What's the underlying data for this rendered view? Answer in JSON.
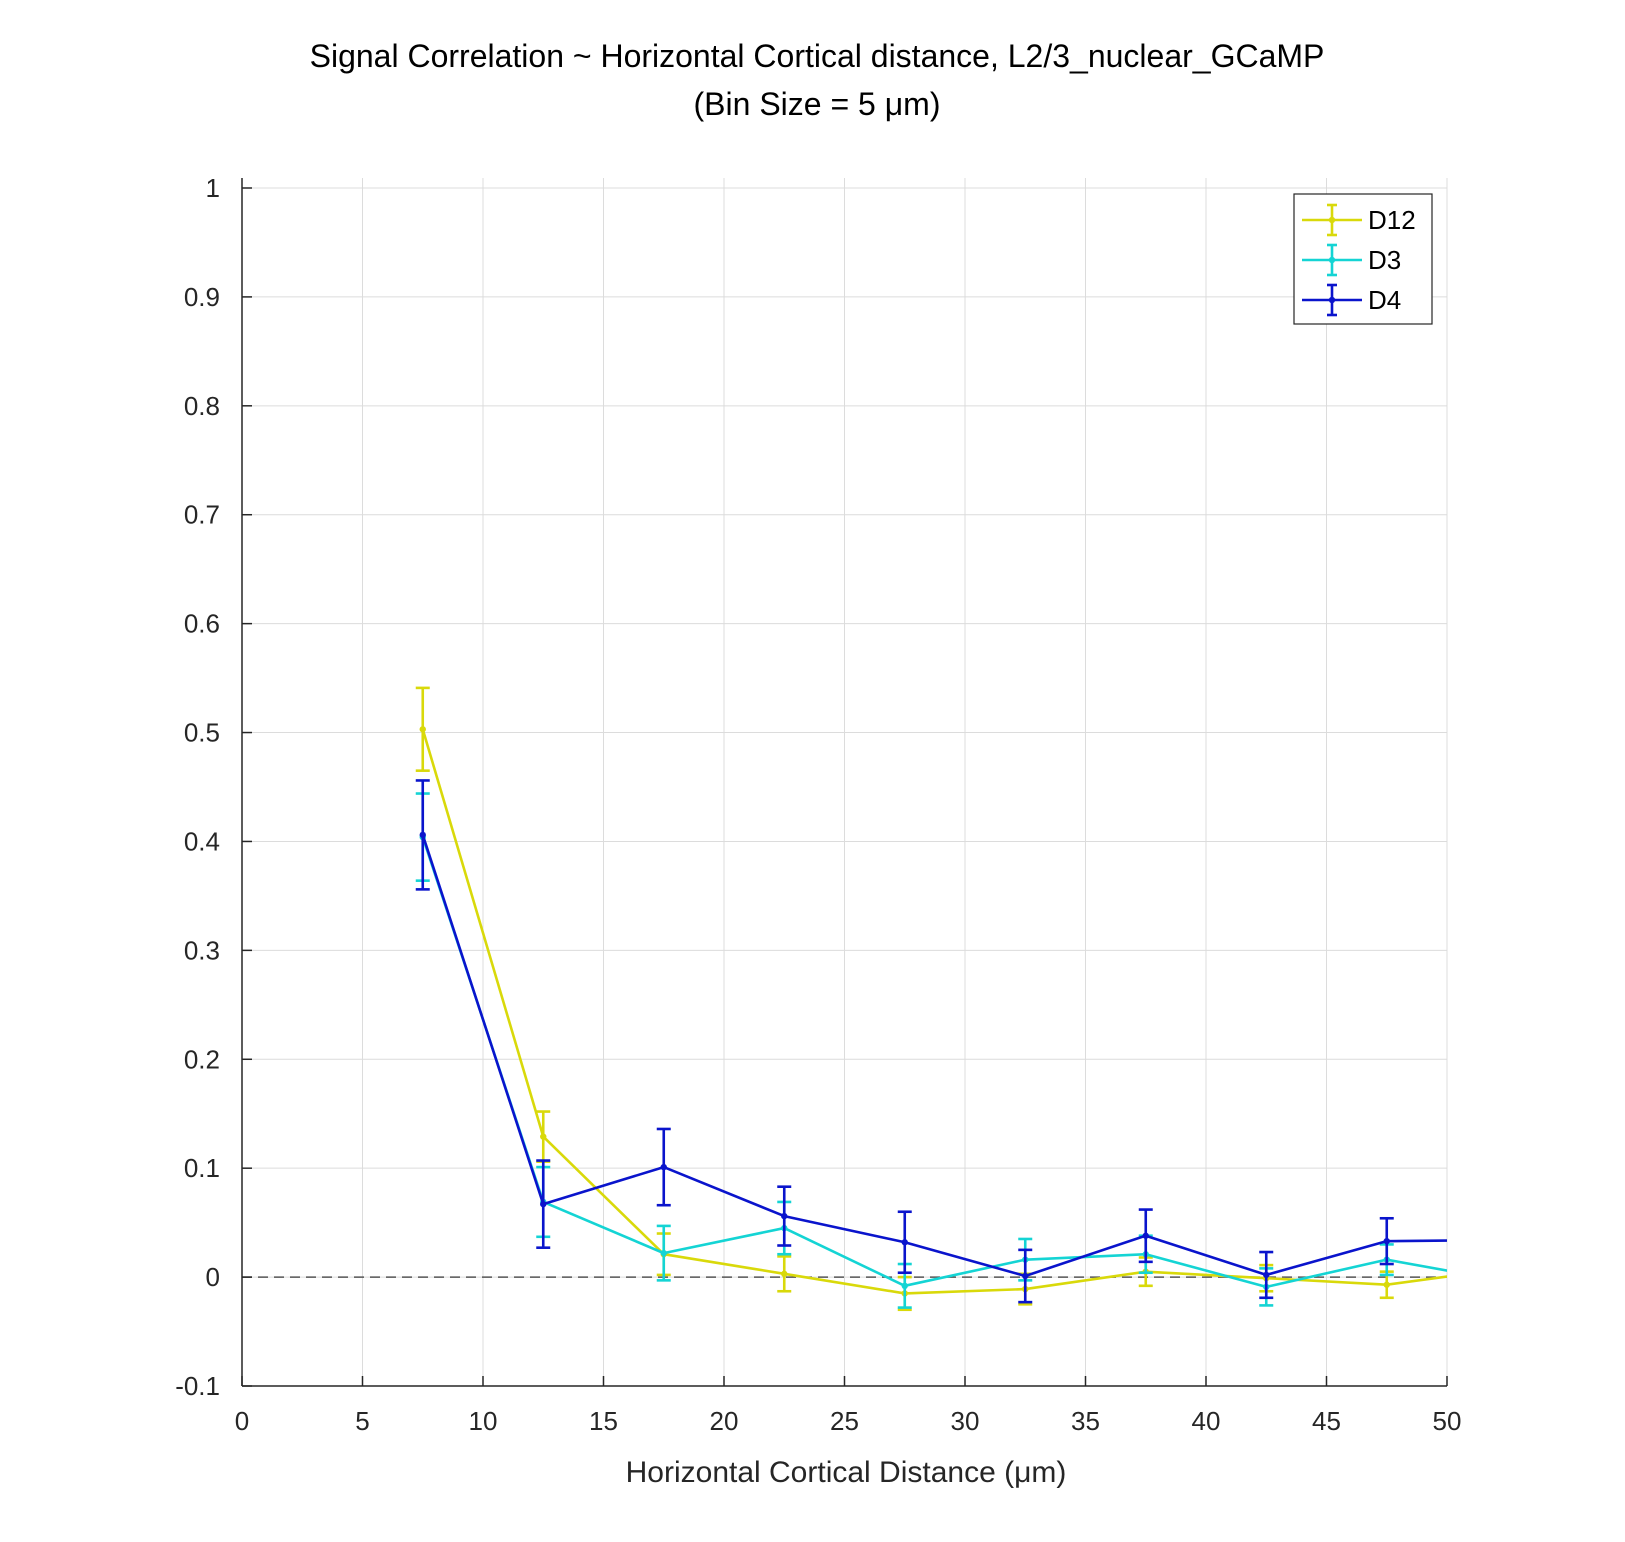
{
  "chart_data": {
    "type": "line",
    "title": "Signal Correlation ~ Horizontal Cortical distance, L2/3_nuclear_GCaMP",
    "subtitle": "(Bin Size = 5 μm)",
    "xlabel": "Horizontal Cortical Distance (μm)",
    "ylabel": "",
    "xlim": [
      0,
      50
    ],
    "ylim": [
      -0.1,
      1
    ],
    "x_ticks": [
      "0",
      "5",
      "10",
      "15",
      "20",
      "25",
      "30",
      "35",
      "40",
      "45",
      "50"
    ],
    "y_ticks": [
      "-0.1",
      "0",
      "0.1",
      "0.2",
      "0.3",
      "0.4",
      "0.5",
      "0.6",
      "0.7",
      "0.8",
      "0.9",
      "1"
    ],
    "grid": true,
    "legend_position": "top-right",
    "reference_line": {
      "y": 0,
      "style": "dashed"
    },
    "x": [
      7.5,
      12.5,
      17.5,
      22.5,
      27.5,
      32.5,
      37.5,
      42.5,
      47.5,
      52.5
    ],
    "series": [
      {
        "name": "D12",
        "color": "#d9d90a",
        "values": [
          0.503,
          0.129,
          0.021,
          0.003,
          -0.015,
          -0.011,
          0.005,
          -0.001,
          -0.007,
          0.008
        ],
        "errors": [
          0.038,
          0.023,
          0.019,
          0.016,
          0.015,
          0.014,
          0.013,
          0.012,
          0.012,
          0.0
        ]
      },
      {
        "name": "D3",
        "color": "#14d4d4",
        "values": [
          0.404,
          0.069,
          0.022,
          0.045,
          -0.008,
          0.016,
          0.021,
          -0.009,
          0.016,
          -0.004
        ],
        "errors": [
          0.04,
          0.032,
          0.025,
          0.024,
          0.02,
          0.019,
          0.017,
          0.017,
          0.014,
          0.0
        ]
      },
      {
        "name": "D4",
        "color": "#0a14cc",
        "values": [
          0.406,
          0.067,
          0.101,
          0.056,
          0.032,
          0.001,
          0.038,
          0.002,
          0.033,
          0.034
        ],
        "errors": [
          0.05,
          0.04,
          0.035,
          0.027,
          0.028,
          0.024,
          0.024,
          0.021,
          0.021,
          0.0
        ]
      }
    ]
  }
}
